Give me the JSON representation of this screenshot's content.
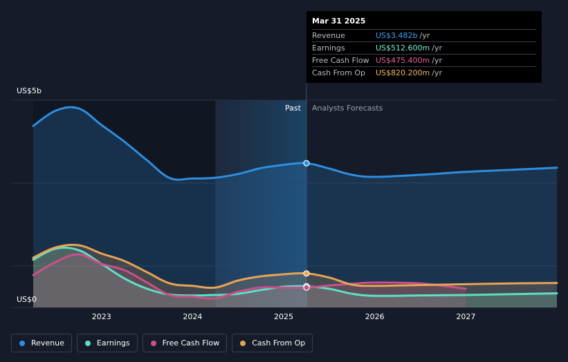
{
  "tooltip": {
    "date": "Mar 31 2025",
    "rows": [
      {
        "label": "Revenue",
        "value": "US$3.482b",
        "unit": "/yr",
        "color": "#3ea0ee"
      },
      {
        "label": "Earnings",
        "value": "US$512.600m",
        "unit": "/yr",
        "color": "#7ff0da"
      },
      {
        "label": "Free Cash Flow",
        "value": "US$475.400m",
        "unit": "/yr",
        "color": "#e5609b"
      },
      {
        "label": "Cash From Op",
        "value": "US$820.200m",
        "unit": "/yr",
        "color": "#f2b766"
      }
    ]
  },
  "legend": [
    {
      "label": "Revenue",
      "color": "#2e8fe0"
    },
    {
      "label": "Earnings",
      "color": "#5de0c8"
    },
    {
      "label": "Free Cash Flow",
      "color": "#c9508a"
    },
    {
      "label": "Cash From Op",
      "color": "#e9a454"
    }
  ],
  "chart_data": {
    "type": "line",
    "title": "",
    "y_top_label": "US$5b",
    "y_bottom_label": "US$0",
    "ylim": [
      0,
      5
    ],
    "xlim": [
      2022.25,
      2028.0
    ],
    "x_ticks": [
      2023,
      2024,
      2025,
      2026,
      2027
    ],
    "x_tick_labels": [
      "2023",
      "2024",
      "2025",
      "2026",
      "2027"
    ],
    "past_label": "Past",
    "forecast_label": "Analysts Forecasts",
    "past_start": 2024.25,
    "forecast_start": 2025.25,
    "highlight_x": 2025.25,
    "series": [
      {
        "name": "Revenue",
        "color": "#2e8fe0",
        "x": [
          2022.25,
          2022.5,
          2022.75,
          2023.0,
          2023.25,
          2023.5,
          2023.75,
          2024.0,
          2024.25,
          2024.5,
          2024.75,
          2025.0,
          2025.25,
          2025.5,
          2025.75,
          2026.0,
          2026.5,
          2027.0,
          2027.5,
          2028.0
        ],
        "y": [
          4.38,
          4.75,
          4.8,
          4.4,
          4.0,
          3.55,
          3.12,
          3.11,
          3.13,
          3.22,
          3.36,
          3.44,
          3.48,
          3.35,
          3.2,
          3.15,
          3.2,
          3.27,
          3.32,
          3.37
        ]
      },
      {
        "name": "Earnings",
        "color": "#5de0c8",
        "x": [
          2022.25,
          2022.5,
          2022.75,
          2023.0,
          2023.25,
          2023.5,
          2023.75,
          2024.0,
          2024.25,
          2024.5,
          2024.75,
          2025.0,
          2025.25,
          2025.5,
          2025.75,
          2026.0,
          2026.5,
          2027.0,
          2027.5,
          2028.0
        ],
        "y": [
          1.15,
          1.42,
          1.38,
          1.05,
          0.7,
          0.45,
          0.31,
          0.29,
          0.3,
          0.33,
          0.42,
          0.5,
          0.51,
          0.45,
          0.33,
          0.28,
          0.29,
          0.3,
          0.32,
          0.34
        ]
      },
      {
        "name": "Free Cash Flow",
        "color": "#c9508a",
        "x": [
          2022.25,
          2022.5,
          2022.75,
          2023.0,
          2023.25,
          2023.5,
          2023.75,
          2024.0,
          2024.25,
          2024.5,
          2024.75,
          2025.0,
          2025.25,
          2025.5,
          2025.75,
          2026.0,
          2026.5,
          2027.0
        ],
        "y": [
          0.78,
          1.1,
          1.28,
          1.05,
          0.9,
          0.6,
          0.3,
          0.26,
          0.22,
          0.38,
          0.48,
          0.48,
          0.48,
          0.53,
          0.57,
          0.6,
          0.58,
          0.45
        ]
      },
      {
        "name": "Cash From Op",
        "color": "#e9a454",
        "x": [
          2022.25,
          2022.5,
          2022.75,
          2023.0,
          2023.25,
          2023.5,
          2023.75,
          2024.0,
          2024.25,
          2024.5,
          2024.75,
          2025.0,
          2025.25,
          2025.5,
          2025.75,
          2026.0,
          2026.5,
          2027.0,
          2027.5,
          2028.0
        ],
        "y": [
          1.2,
          1.45,
          1.5,
          1.3,
          1.12,
          0.85,
          0.58,
          0.52,
          0.48,
          0.65,
          0.75,
          0.8,
          0.82,
          0.72,
          0.55,
          0.52,
          0.54,
          0.56,
          0.58,
          0.59
        ]
      }
    ]
  }
}
